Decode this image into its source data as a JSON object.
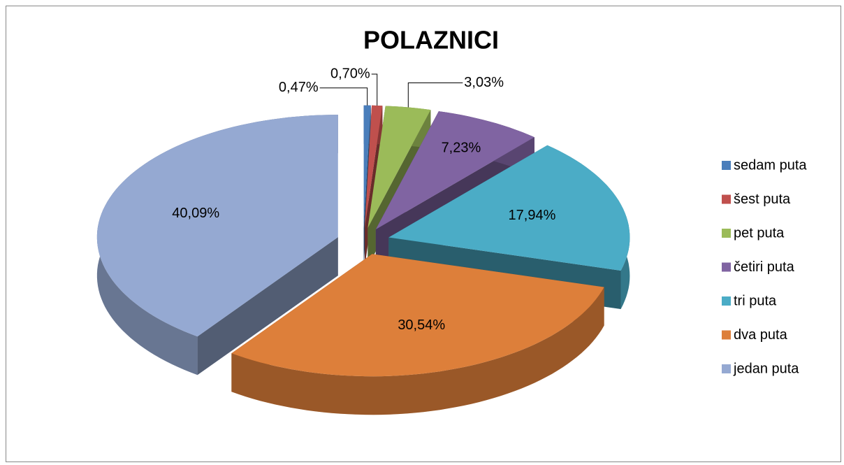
{
  "chart_data": {
    "type": "pie",
    "title": "POLAZNICI",
    "categories": [
      "sedam puta",
      "šest puta",
      "pet puta",
      "četiri puta",
      "tri puta",
      "dva puta",
      "jedan puta"
    ],
    "values": [
      0.47,
      0.7,
      3.03,
      7.23,
      17.94,
      30.54,
      40.09
    ],
    "value_labels": [
      "0,47%",
      "0,70%",
      "3,03%",
      "7,23%",
      "17,94%",
      "30,54%",
      "40,09%"
    ],
    "colors": [
      "#4a7ebb",
      "#c0504d",
      "#9bbb59",
      "#8064a2",
      "#4bacc6",
      "#dd7f3a",
      "#95a9d2"
    ],
    "legend": "right"
  }
}
